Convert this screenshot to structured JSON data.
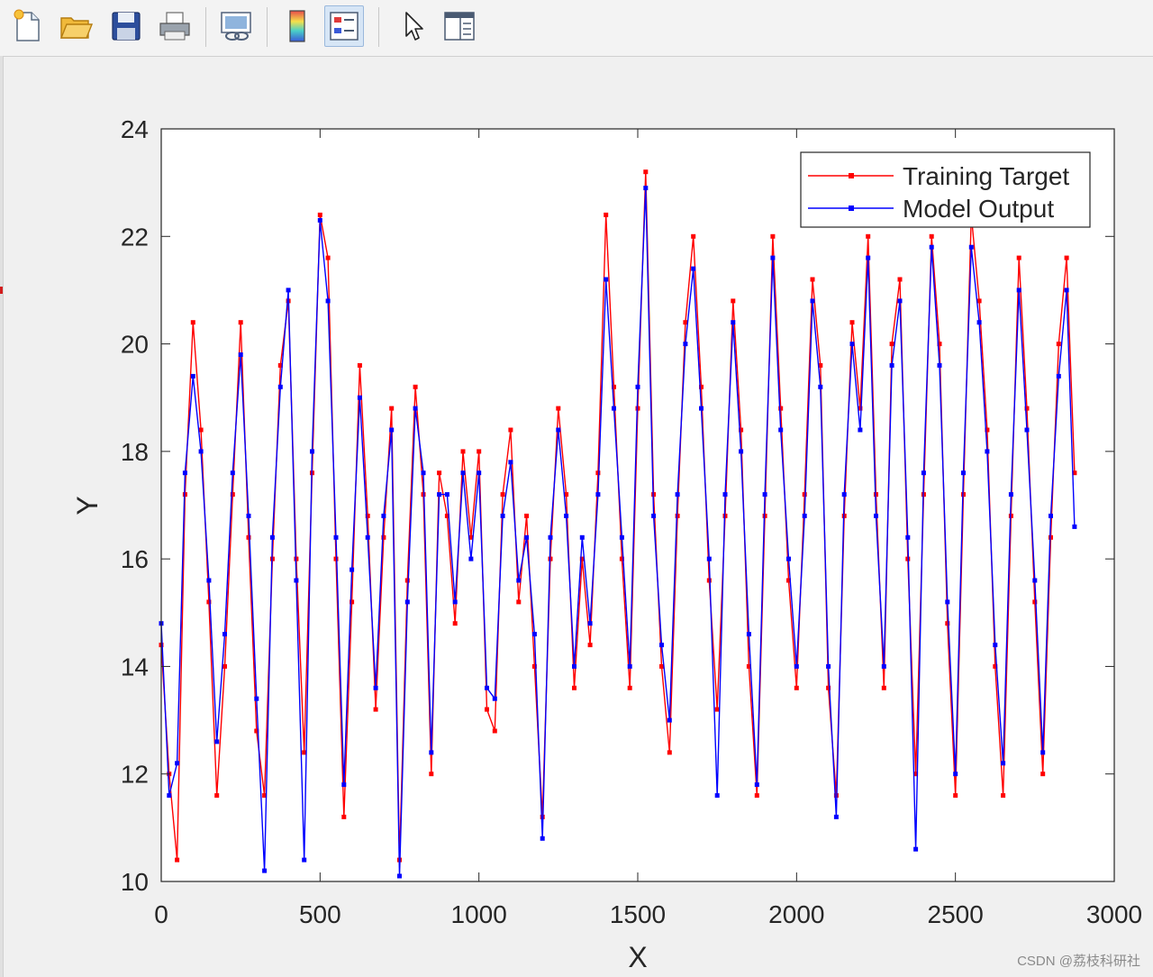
{
  "toolbar": {
    "buttons": [
      {
        "name": "new-figure-icon",
        "icon": "new-file"
      },
      {
        "name": "open-file-icon",
        "icon": "folder"
      },
      {
        "name": "save-icon",
        "icon": "floppy"
      },
      {
        "name": "print-icon",
        "icon": "printer"
      },
      {
        "name": "link-plot-icon",
        "icon": "link-plot"
      },
      {
        "name": "insert-colorbar-icon",
        "icon": "colorbar"
      },
      {
        "name": "insert-legend-icon",
        "icon": "legend"
      },
      {
        "name": "edit-plot-icon",
        "icon": "arrow-cursor"
      },
      {
        "name": "property-inspector-icon",
        "icon": "panel"
      }
    ]
  },
  "watermark": "CSDN @荔枝科研社",
  "chart_data": {
    "type": "line",
    "xlabel": "X",
    "ylabel": "Y",
    "xlim": [
      0,
      3000
    ],
    "ylim": [
      10,
      24
    ],
    "xticks": [
      0,
      500,
      1000,
      1500,
      2000,
      2500,
      3000
    ],
    "yticks": [
      10,
      12,
      14,
      16,
      18,
      20,
      22,
      24
    ],
    "grid": false,
    "legend_position": "top-right",
    "series": [
      {
        "name": "Training Target",
        "color": "#ff0000",
        "marker": "square",
        "x": [
          0,
          25,
          50,
          75,
          100,
          125,
          150,
          175,
          200,
          225,
          250,
          275,
          300,
          325,
          350,
          375,
          400,
          425,
          450,
          475,
          500,
          525,
          550,
          575,
          600,
          625,
          650,
          675,
          700,
          725,
          750,
          775,
          800,
          825,
          850,
          875,
          900,
          925,
          950,
          975,
          1000,
          1025,
          1050,
          1075,
          1100,
          1125,
          1150,
          1175,
          1200,
          1225,
          1250,
          1275,
          1300,
          1325,
          1350,
          1375,
          1400,
          1425,
          1450,
          1475,
          1500,
          1525,
          1550,
          1575,
          1600,
          1625,
          1650,
          1675,
          1700,
          1725,
          1750,
          1775,
          1800,
          1825,
          1850,
          1875,
          1900,
          1925,
          1950,
          1975,
          2000,
          2025,
          2050,
          2075,
          2100,
          2125,
          2150,
          2175,
          2200,
          2225,
          2250,
          2275,
          2300,
          2325,
          2350,
          2375,
          2400,
          2425,
          2450,
          2475,
          2500,
          2525,
          2550,
          2575,
          2600,
          2625,
          2650,
          2675,
          2700,
          2725,
          2750,
          2775,
          2800,
          2825,
          2850,
          2875
        ],
        "y": [
          14.4,
          12.0,
          10.4,
          17.2,
          20.4,
          18.4,
          15.2,
          11.6,
          14.0,
          17.2,
          20.4,
          16.4,
          12.8,
          11.6,
          16.0,
          19.6,
          20.8,
          16.0,
          12.4,
          17.6,
          22.4,
          21.6,
          16.0,
          11.2,
          15.2,
          19.6,
          16.8,
          13.2,
          16.4,
          18.8,
          10.4,
          15.6,
          19.2,
          17.2,
          12.0,
          17.6,
          16.8,
          14.8,
          18.0,
          16.4,
          18.0,
          13.2,
          12.8,
          17.2,
          18.4,
          15.2,
          16.8,
          14.0,
          11.2,
          16.0,
          18.8,
          17.2,
          13.6,
          16.0,
          14.4,
          17.6,
          22.4,
          19.2,
          16.0,
          13.6,
          18.8,
          23.2,
          17.2,
          14.0,
          12.4,
          16.8,
          20.4,
          22.0,
          19.2,
          15.6,
          13.2,
          16.8,
          20.8,
          18.4,
          14.0,
          11.6,
          16.8,
          22.0,
          18.8,
          15.6,
          13.6,
          17.2,
          21.2,
          19.6,
          13.6,
          11.6,
          16.8,
          20.4,
          18.8,
          22.0,
          17.2,
          13.6,
          20.0,
          21.2,
          16.0,
          12.0,
          17.2,
          22.0,
          20.0,
          14.8,
          11.6,
          17.2,
          22.4,
          20.8,
          18.4,
          14.0,
          11.6,
          16.8,
          21.6,
          18.8,
          15.2,
          12.0,
          16.4,
          20.0,
          21.6,
          17.6
        ]
      },
      {
        "name": "Model Output",
        "color": "#0000ff",
        "marker": "square",
        "x": [
          0,
          25,
          50,
          75,
          100,
          125,
          150,
          175,
          200,
          225,
          250,
          275,
          300,
          325,
          350,
          375,
          400,
          425,
          450,
          475,
          500,
          525,
          550,
          575,
          600,
          625,
          650,
          675,
          700,
          725,
          750,
          775,
          800,
          825,
          850,
          875,
          900,
          925,
          950,
          975,
          1000,
          1025,
          1050,
          1075,
          1100,
          1125,
          1150,
          1175,
          1200,
          1225,
          1250,
          1275,
          1300,
          1325,
          1350,
          1375,
          1400,
          1425,
          1450,
          1475,
          1500,
          1525,
          1550,
          1575,
          1600,
          1625,
          1650,
          1675,
          1700,
          1725,
          1750,
          1775,
          1800,
          1825,
          1850,
          1875,
          1900,
          1925,
          1950,
          1975,
          2000,
          2025,
          2050,
          2075,
          2100,
          2125,
          2150,
          2175,
          2200,
          2225,
          2250,
          2275,
          2300,
          2325,
          2350,
          2375,
          2400,
          2425,
          2450,
          2475,
          2500,
          2525,
          2550,
          2575,
          2600,
          2625,
          2650,
          2675,
          2700,
          2725,
          2750,
          2775,
          2800,
          2825,
          2850,
          2875
        ],
        "y": [
          14.8,
          11.6,
          12.2,
          17.6,
          19.4,
          18.0,
          15.6,
          12.6,
          14.6,
          17.6,
          19.8,
          16.8,
          13.4,
          10.2,
          16.4,
          19.2,
          21.0,
          15.6,
          10.4,
          18.0,
          22.3,
          20.8,
          16.4,
          11.8,
          15.8,
          19.0,
          16.4,
          13.6,
          16.8,
          18.4,
          10.1,
          15.2,
          18.8,
          17.6,
          12.4,
          17.2,
          17.2,
          15.2,
          17.6,
          16.0,
          17.6,
          13.6,
          13.4,
          16.8,
          17.8,
          15.6,
          16.4,
          14.6,
          10.8,
          16.4,
          18.4,
          16.8,
          14.0,
          16.4,
          14.8,
          17.2,
          21.2,
          18.8,
          16.4,
          14.0,
          19.2,
          22.9,
          16.8,
          14.4,
          13.0,
          17.2,
          20.0,
          21.4,
          18.8,
          16.0,
          11.6,
          17.2,
          20.4,
          18.0,
          14.6,
          11.8,
          17.2,
          21.6,
          18.4,
          16.0,
          14.0,
          16.8,
          20.8,
          19.2,
          14.0,
          11.2,
          17.2,
          20.0,
          18.4,
          21.6,
          16.8,
          14.0,
          19.6,
          20.8,
          16.4,
          10.6,
          17.6,
          21.8,
          19.6,
          15.2,
          12.0,
          17.6,
          21.8,
          20.4,
          18.0,
          14.4,
          12.2,
          17.2,
          21.0,
          18.4,
          15.6,
          12.4,
          16.8,
          19.4,
          21.0,
          16.6
        ]
      }
    ]
  }
}
